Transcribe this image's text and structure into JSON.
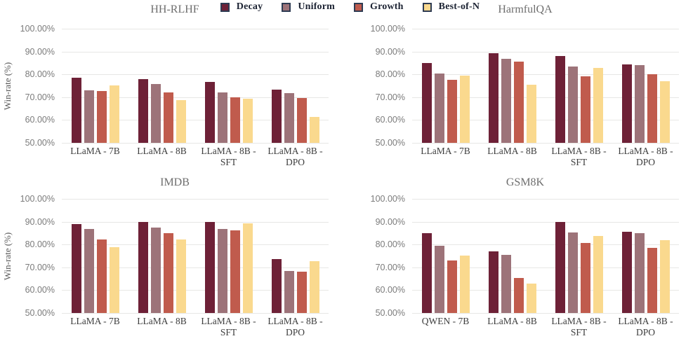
{
  "figure": {
    "ylabel": "Win-rate (%)",
    "legend_position": "top-center",
    "grid_color": "#E7E7E5",
    "tick_label_color": "#7B7B7B",
    "title_color": "#6E6E6E",
    "legend": [
      {
        "label": "Decay",
        "color": "#6E2137"
      },
      {
        "label": "Uniform",
        "color": "#9D7379"
      },
      {
        "label": "Growth",
        "color": "#C05B4D"
      },
      {
        "label": "Best-of-N",
        "color": "#FAD98E"
      }
    ]
  },
  "chart_data": [
    {
      "type": "bar",
      "title": "HH-RLHF",
      "ylabel": "Win-rate (%)",
      "ylim": [
        50,
        100
      ],
      "grid": true,
      "yticks": [
        "100.00%",
        "90.00%",
        "80.00%",
        "70.00%",
        "60.00%",
        "50.00%"
      ],
      "categories": [
        "LLaMA - 7B",
        "LLaMA - 8B",
        "LLaMA - 8B - SFT",
        "LLaMA - 8B - DPO"
      ],
      "series": [
        {
          "name": "Decay",
          "values": [
            78.4,
            77.9,
            76.6,
            73.3
          ]
        },
        {
          "name": "Uniform",
          "values": [
            73.1,
            75.9,
            72.2,
            71.8
          ]
        },
        {
          "name": "Growth",
          "values": [
            72.8,
            72.0,
            69.9,
            69.6
          ]
        },
        {
          "name": "Best-of-N",
          "values": [
            75.1,
            68.6,
            69.4,
            61.5
          ]
        }
      ]
    },
    {
      "type": "bar",
      "title": "HarmfulQA",
      "ylabel": "",
      "ylim": [
        50,
        100
      ],
      "grid": true,
      "yticks": [
        "100.00%",
        "90.00%",
        "80.00%",
        "70.00%",
        "60.00%",
        "50.00%"
      ],
      "categories": [
        "LLaMA - 7B",
        "LLaMA - 8B",
        "LLaMA - 8B - SFT",
        "LLaMA - 8B - DPO"
      ],
      "series": [
        {
          "name": "Decay",
          "values": [
            85.0,
            89.3,
            87.9,
            84.5
          ]
        },
        {
          "name": "Uniform",
          "values": [
            80.4,
            86.9,
            83.5,
            84.0
          ]
        },
        {
          "name": "Growth",
          "values": [
            77.7,
            85.5,
            79.1,
            80.1
          ]
        },
        {
          "name": "Best-of-N",
          "values": [
            79.6,
            75.5,
            82.8,
            77.0
          ]
        }
      ]
    },
    {
      "type": "bar",
      "title": "IMDB",
      "ylabel": "Win-rate (%)",
      "ylim": [
        50,
        100
      ],
      "grid": true,
      "yticks": [
        "100.00%",
        "90.00%",
        "80.00%",
        "70.00%",
        "60.00%",
        "50.00%"
      ],
      "categories": [
        "LLaMA - 7B",
        "LLaMA - 8B",
        "LLaMA - 8B - SFT",
        "LLaMA - 8B - DPO"
      ],
      "series": [
        {
          "name": "Decay",
          "values": [
            89.0,
            90.0,
            90.0,
            73.7
          ]
        },
        {
          "name": "Uniform",
          "values": [
            86.9,
            87.5,
            86.9,
            68.4
          ]
        },
        {
          "name": "Growth",
          "values": [
            82.1,
            85.1,
            86.1,
            68.1
          ]
        },
        {
          "name": "Best-of-N",
          "values": [
            78.9,
            82.3,
            89.2,
            72.6
          ]
        }
      ]
    },
    {
      "type": "bar",
      "title": "GSM8K",
      "ylabel": "",
      "ylim": [
        50,
        100
      ],
      "grid": true,
      "yticks": [
        "100.00%",
        "90.00%",
        "80.00%",
        "70.00%",
        "60.00%",
        "50.00%"
      ],
      "categories": [
        "QWEN - 7B",
        "LLaMA - 8B",
        "LLaMA - 8B - SFT",
        "LLaMA - 8B - DPO"
      ],
      "series": [
        {
          "name": "Decay",
          "values": [
            85.0,
            77.1,
            89.8,
            85.6
          ]
        },
        {
          "name": "Uniform",
          "values": [
            79.3,
            75.5,
            85.4,
            85.1
          ]
        },
        {
          "name": "Growth",
          "values": [
            73.0,
            65.2,
            80.7,
            78.5
          ]
        },
        {
          "name": "Best-of-N",
          "values": [
            75.2,
            62.8,
            83.8,
            81.9
          ]
        }
      ]
    }
  ]
}
